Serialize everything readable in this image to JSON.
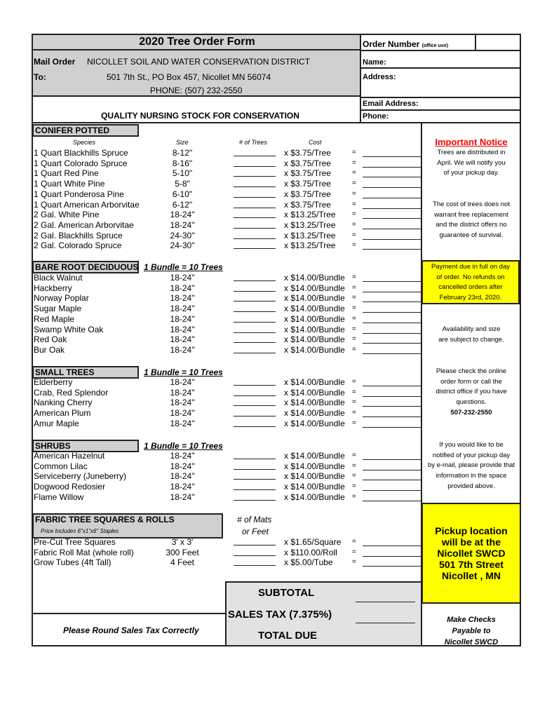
{
  "header": {
    "title": "2020 Tree Order Form",
    "order_number": "Order Number",
    "order_number_note": "(office use)",
    "mail_order": "Mail Order",
    "to": "To:",
    "org": "NICOLLET SOIL AND WATER CONSERVATION DISTRICT",
    "address": "501 7th St., PO Box 457, Nicollet MN 56074",
    "phone": "PHONE: (507) 232-2550",
    "tagline": "QUALITY NURSING STOCK FOR CONSERVATION"
  },
  "customer": {
    "name": "Name:",
    "address": "Address:",
    "email": "Email Address:",
    "phone": "Phone:"
  },
  "columns": {
    "species": "Species",
    "size": "Size",
    "trees": "# of Trees",
    "cost": "Cost"
  },
  "sections": [
    {
      "title": "CONIFER POTTED",
      "subtitle": "",
      "items": [
        [
          "1 Quart Blackhills Spruce",
          "8-12\"",
          "x $3.75/Tree"
        ],
        [
          "1 Quart Colorado Spruce",
          "8-16\"",
          "x $3.75/Tree"
        ],
        [
          "1 Quart Red Pine",
          "5-10\"",
          "x $3.75/Tree"
        ],
        [
          "1 Quart White Pine",
          "5-8\"",
          "x $3.75/Tree"
        ],
        [
          "1 Quart Ponderosa Pine",
          "6-10\"",
          "x $3.75/Tree"
        ],
        [
          "1 Quart American Arborvitae",
          "6-12\"",
          "x $3.75/Tree"
        ],
        [
          "2 Gal. White Pine",
          "18-24\"",
          "x $13.25/Tree"
        ],
        [
          "2 Gal. American Arborvitae",
          "18-24\"",
          "x $13.25/Tree"
        ],
        [
          "2 Gal. Blackhills Spruce",
          "24-30\"",
          "x $13.25/Tree"
        ],
        [
          "2 Gal. Colorado Spruce",
          "24-30\"",
          "x $13.25/Tree"
        ]
      ]
    },
    {
      "title": "BARE ROOT DECIDUOUS",
      "subtitle": "1 Bundle = 10 Trees",
      "items": [
        [
          "Black Walnut",
          "18-24\"",
          "x $14.00/Bundle"
        ],
        [
          "Hackberry",
          "18-24\"",
          "x $14.00/Bundle"
        ],
        [
          "Norway Poplar",
          "18-24\"",
          "x $14.00/Bundle"
        ],
        [
          "Sugar Maple",
          "18-24\"",
          "x $14.00/Bundle"
        ],
        [
          "Red Maple",
          "18-24\"",
          "x $14.00/Bundle"
        ],
        [
          "Swamp White Oak",
          "18-24\"",
          "x $14.00/Bundle"
        ],
        [
          "Red Oak",
          "18-24\"",
          "x $14.00/Bundle"
        ],
        [
          "Bur Oak",
          "18-24\"",
          "x $14.00/Bundle"
        ]
      ]
    },
    {
      "title": "SMALL TREES",
      "subtitle": "1 Bundle = 10 Trees",
      "items": [
        [
          "Elderberry",
          "18-24\"",
          "x $14.00/Bundle"
        ],
        [
          "Crab, Red Splendor",
          "18-24\"",
          "x $14.00/Bundle"
        ],
        [
          "Nanking Cherry",
          "18-24\"",
          "x $14.00/Bundle"
        ],
        [
          "American Plum",
          "18-24\"",
          "x $14.00/Bundle"
        ],
        [
          "Amur Maple",
          "18-24\"",
          "x $14.00/Bundle"
        ]
      ]
    },
    {
      "title": "SHRUBS",
      "subtitle": "1 Bundle = 10 Trees",
      "items": [
        [
          "American Hazelnut",
          "18-24\"",
          "x $14.00/Bundle"
        ],
        [
          "Common Lilac",
          "18-24\"",
          "x $14.00/Bundle"
        ],
        [
          "Serviceberry (Juneberry)",
          "18-24\"",
          "x $14.00/Bundle"
        ],
        [
          "Dogwood Redosier",
          "18-24\"",
          "x $14.00/Bundle"
        ],
        [
          "Flame Willow",
          "18-24\"",
          "x $14.00/Bundle"
        ]
      ]
    },
    {
      "title": "FABRIC TREE SQUARES & ROLLS",
      "subtitle": "Price Includes 6\"x1\"x6\" Staples",
      "qty_label": "# of Mats",
      "qty_label2": "or Feet",
      "items": [
        [
          "Pre-Cut Tree Squares",
          "3' x 3'",
          "x $1.65/Square"
        ],
        [
          "Fabric Roll Mat (whole roll)",
          "300 Feet",
          "x $110.00/Roll"
        ],
        [
          "Grow Tubes (4ft Tall)",
          "4 Feet",
          "x $5.00/Tube"
        ]
      ]
    }
  ],
  "equals": "=",
  "notices": {
    "title": "Important Notice",
    "n1": [
      "Trees are distributed in",
      "April. We will notify you",
      "of your pickup day."
    ],
    "n2": [
      "The cost of trees does not",
      "warrant free replacement",
      "and the district offers no",
      "guarantee of survival."
    ],
    "payment": [
      "Payment due in full on day",
      "of order.  No refunds on",
      "cancelled orders after",
      "February 23rd, 2020."
    ],
    "n3": [
      "Availability and size",
      "are subject to change."
    ],
    "n4": [
      "Please check the online",
      "order form or call the",
      "district office if you have",
      "questions."
    ],
    "phone": "507-232-2550",
    "n5": [
      "If you would like to be",
      "notified of your pickup day",
      "by e-mail, please provide that",
      "information in the space",
      "provided above."
    ]
  },
  "pickup": [
    "Pickup location",
    "will be at the",
    "Nicollet SWCD",
    "501 7th Street",
    "Nicollet , MN"
  ],
  "checks": [
    "Make Checks",
    "Payable to",
    "Nicollet SWCD"
  ],
  "totals": {
    "subtotal": "SUBTOTAL",
    "tax": "SALES TAX (7.375%)",
    "total": "TOTAL DUE",
    "round_note": "Please Round Sales Tax Correctly"
  },
  "colors": {
    "gray": "#d0d0d0",
    "yellow": "#ffff00",
    "notice_red": "#ff0000"
  }
}
